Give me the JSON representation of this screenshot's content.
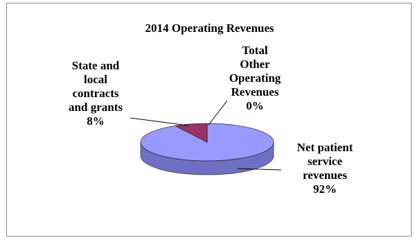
{
  "chart_data": {
    "type": "pie",
    "title": "2014 Operating Revenues",
    "slices": [
      {
        "label": "Net patient service revenues",
        "value": 92,
        "display": "92%",
        "color": "#9999FF",
        "side": "#6f6fc4"
      },
      {
        "label": "State and local contracts and grants",
        "value": 8,
        "display": "8%",
        "color": "#993366",
        "side": "#6e2248"
      },
      {
        "label": "Total Other Operating Revenues",
        "value": 0,
        "display": "0%",
        "color": "#FFFFCC",
        "side": "#c8c89a"
      }
    ],
    "legend": "none",
    "style": "3d"
  },
  "labels": {
    "state": "State and\nlocal\ncontracts\nand grants\n8%",
    "other": "Total\nOther\nOperating\nRevenues\n0%",
    "net": "Net patient\nservice\nrevenues\n92%"
  }
}
